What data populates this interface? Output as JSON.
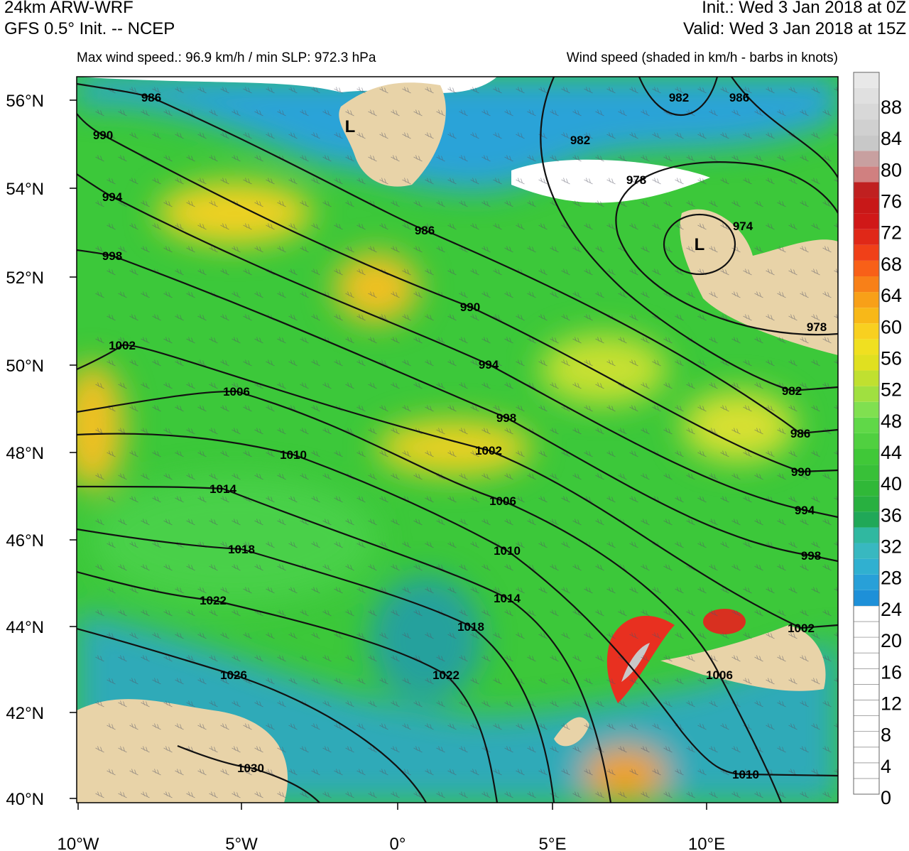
{
  "header": {
    "model": "24km ARW-WRF",
    "source": "GFS 0.5° Init. -- NCEP",
    "init": "Init.:  Wed 3 Jan 2018 at 0Z",
    "valid": "Valid: Wed 3 Jan 2018 at 15Z",
    "stats": "Max wind speed.: 96.9 km/h / min SLP: 972.3 hPa",
    "legend_title": "Wind speed (shaded in km/h - barbs in knots)"
  },
  "axes": {
    "x_ticks": [
      "10°W",
      "5°W",
      "0°",
      "5°E",
      "10°E"
    ],
    "y_ticks": [
      "56°N",
      "54°N",
      "52°N",
      "50°N",
      "48°N",
      "46°N",
      "44°N",
      "42°N",
      "40°N"
    ]
  },
  "colorbar": {
    "labels": [
      "0",
      "4",
      "8",
      "12",
      "16",
      "20",
      "24",
      "28",
      "32",
      "36",
      "40",
      "44",
      "48",
      "52",
      "56",
      "60",
      "64",
      "68",
      "72",
      "76",
      "80",
      "84",
      "88"
    ]
  },
  "isobar_labels": [
    "986",
    "990",
    "994",
    "998",
    "1002",
    "1006",
    "1010",
    "1014",
    "1018",
    "1022",
    "1026",
    "1030",
    "986",
    "990",
    "994",
    "998",
    "1002",
    "1006",
    "1010",
    "1014",
    "1018",
    "1022",
    "982",
    "978",
    "974",
    "982",
    "986",
    "978",
    "982",
    "986",
    "990",
    "994",
    "998",
    "1002",
    "1006",
    "1010"
  ],
  "lows": [
    "L",
    "L"
  ]
}
